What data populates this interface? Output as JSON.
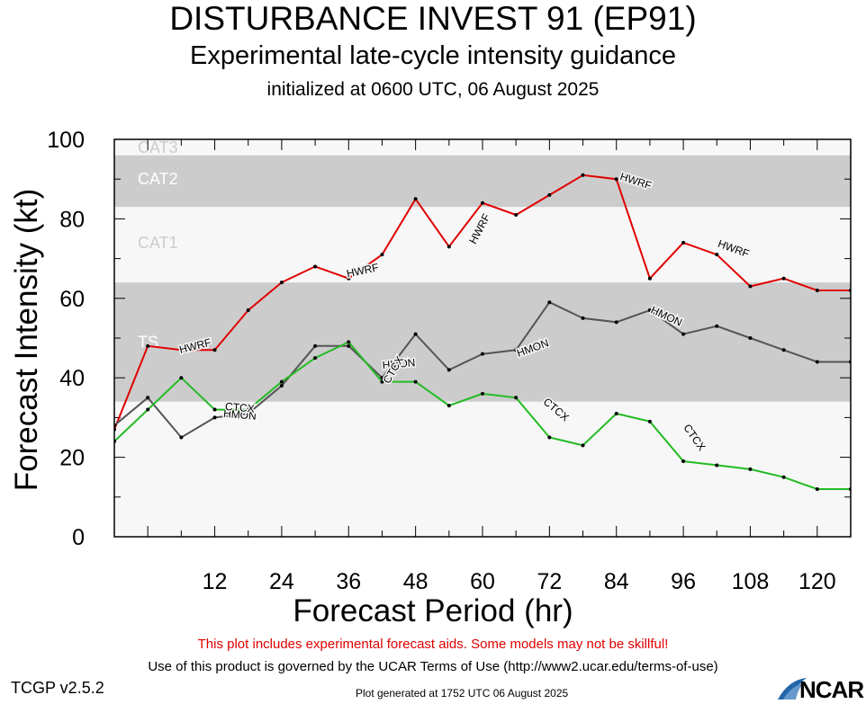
{
  "header": {
    "title": "DISTURBANCE INVEST 91 (EP91)",
    "subtitle": "Experimental late-cycle intensity guidance",
    "initialized": "initialized at 0600 UTC, 06 August 2025"
  },
  "footer": {
    "warning": "This plot includes experimental forecast aids. Some models may not be skillful!",
    "terms": "Use of this product is governed by the UCAR Terms of Use (http://www2.ucar.edu/terms-of-use)",
    "version": "TCGP v2.5.2",
    "generated": "Plot generated at 1752 UTC   06 August 2025",
    "logo": "NCAR"
  },
  "chart_data": {
    "type": "line",
    "xlabel": "Forecast Period (hr)",
    "ylabel": "Forecast Intensity (kt)",
    "xlim": [
      -6,
      126
    ],
    "ylim": [
      0,
      100
    ],
    "xticks": [
      12,
      24,
      36,
      48,
      60,
      72,
      84,
      96,
      108,
      120
    ],
    "xtick_labels": [
      "12",
      "24",
      "36",
      "48",
      "60",
      "72",
      "84",
      "96",
      "108",
      "120"
    ],
    "yticks": [
      0,
      20,
      40,
      60,
      80,
      100
    ],
    "ytick_labels": [
      "0",
      "20",
      "40",
      "60",
      "80",
      "100"
    ],
    "bands": [
      {
        "label": "TS",
        "from": 34,
        "to": 64,
        "color": "#cccccc",
        "label_color": "#ffffff",
        "label_y": 49
      },
      {
        "label": "CAT1",
        "from": 64,
        "to": 83,
        "color": "#f7f7f7",
        "label_color": "#cccccc",
        "label_y": 74
      },
      {
        "label": "CAT2",
        "from": 83,
        "to": 96,
        "color": "#cccccc",
        "label_color": "#ffffff",
        "label_y": 90
      },
      {
        "label": "CAT3",
        "from": 96,
        "to": 113,
        "color": "#f7f7f7",
        "label_color": "#cccccc",
        "label_y": 98
      }
    ],
    "series": [
      {
        "name": "HWRF",
        "color": "#e00000",
        "x": [
          -6,
          0,
          6,
          12,
          18,
          24,
          30,
          36,
          42,
          48,
          54,
          60,
          66,
          72,
          78,
          84,
          90,
          96,
          102,
          108,
          114,
          120,
          126
        ],
        "y": [
          27,
          48,
          47,
          47,
          57,
          64,
          68,
          65,
          71,
          85,
          73,
          84,
          81,
          86,
          91,
          90,
          65,
          74,
          71,
          63,
          65,
          62,
          62
        ],
        "labels": [
          {
            "x": 8.5,
            "y": 48,
            "angle": -14
          },
          {
            "x": 38.5,
            "y": 67,
            "angle": -12
          },
          {
            "x": 59.5,
            "y": 77.5,
            "angle": -62
          },
          {
            "x": 87.5,
            "y": 89.5,
            "angle": 18
          },
          {
            "x": 105,
            "y": 72.5,
            "angle": 20
          }
        ]
      },
      {
        "name": "HMON",
        "color": "#555555",
        "x": [
          -6,
          0,
          6,
          12,
          18,
          24,
          30,
          36,
          42,
          48,
          54,
          60,
          66,
          72,
          78,
          84,
          90,
          96,
          102,
          108,
          114,
          120,
          126
        ],
        "y": [
          28,
          35,
          25,
          30,
          31,
          38,
          48,
          48,
          40,
          51,
          42,
          46,
          47,
          59,
          55,
          54,
          57,
          51,
          53,
          50,
          47,
          44,
          44
        ],
        "labels": [
          {
            "x": 16.5,
            "y": 30.7,
            "angle": 5
          },
          {
            "x": 45,
            "y": 43.5,
            "angle": -5
          },
          {
            "x": 69,
            "y": 47.5,
            "angle": -20
          },
          {
            "x": 93,
            "y": 55.5,
            "angle": 25
          }
        ]
      },
      {
        "name": "CTCX",
        "color": "#22bb22",
        "x": [
          -6,
          0,
          6,
          12,
          18,
          24,
          30,
          36,
          42,
          48,
          54,
          60,
          66,
          72,
          78,
          84,
          90,
          96,
          102,
          108,
          114,
          120,
          126
        ],
        "y": [
          24,
          32,
          40,
          32,
          32,
          39,
          45,
          49,
          39,
          39,
          33,
          36,
          35,
          25,
          23,
          31,
          29,
          19,
          18,
          17,
          15,
          12,
          12
        ],
        "labels": [
          {
            "x": 16.5,
            "y": 32.5,
            "angle": 5
          },
          {
            "x": 44,
            "y": 42,
            "angle": -60
          },
          {
            "x": 73.2,
            "y": 32,
            "angle": 40
          },
          {
            "x": 98,
            "y": 25,
            "angle": 55
          }
        ]
      }
    ]
  }
}
